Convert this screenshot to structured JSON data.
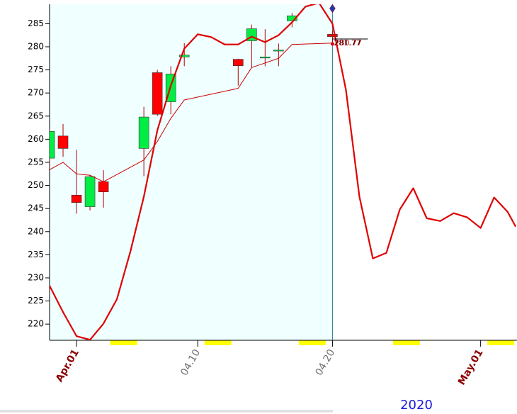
{
  "chart_data": {
    "type": "candlestick",
    "year_label": "2020",
    "xlim": [
      -1,
      33.7
    ],
    "ylim": [
      216.5,
      289.2
    ],
    "yticks": [
      220,
      225,
      230,
      235,
      240,
      245,
      250,
      255,
      260,
      265,
      270,
      275,
      280,
      285
    ],
    "xticks": [
      {
        "value": 1,
        "label": "Apr.01"
      },
      {
        "value": 10,
        "label": "04.10"
      },
      {
        "value": 20,
        "label": "04.20"
      },
      {
        "value": 31,
        "label": "May.01"
      }
    ],
    "xtick_colors": [
      "#8b0000",
      "#707070",
      "#707070",
      "#8b0000"
    ],
    "highlight_days": [
      4,
      5,
      11,
      12,
      18,
      19,
      25,
      26,
      32,
      33
    ],
    "highlight_color": "#ffff00",
    "shaded_until": 20,
    "shade_color": "#f0ffff",
    "candles": {
      "up_color": "#00ee44",
      "down_color": "#ff0000",
      "x": [
        -1,
        0,
        1,
        2,
        3,
        6,
        7,
        8,
        9,
        13,
        14,
        15,
        16,
        17,
        20
      ],
      "open": [
        255.9,
        260.7,
        247.9,
        245.4,
        250.8,
        258.0,
        274.4,
        268.1,
        277.8,
        277.3,
        281.3,
        277.7,
        279.2,
        285.6,
        282.7
      ],
      "high": [
        262.2,
        263.3,
        257.7,
        252.3,
        253.3,
        267.0,
        275.0,
        275.8,
        280.8,
        277.4,
        284.8,
        283.8,
        280.7,
        287.3,
        283.5
      ],
      "low": [
        253.8,
        256.2,
        243.9,
        244.6,
        245.2,
        252.0,
        265.0,
        265.4,
        275.8,
        271.6,
        275.4,
        275.8,
        275.8,
        284.2,
        280.8
      ],
      "close": [
        261.7,
        258.0,
        246.3,
        251.9,
        248.6,
        264.8,
        265.4,
        274.1,
        278.2,
        275.9,
        283.9,
        277.8,
        279.3,
        286.7,
        282.2
      ]
    },
    "lines": [
      {
        "color": "#e00000",
        "width": 2.2,
        "x": [
          -1,
          0,
          1,
          2,
          3,
          4,
          5,
          6,
          7,
          8,
          9,
          10,
          11,
          12,
          13,
          14,
          15,
          16,
          17,
          18,
          19,
          20,
          21,
          22,
          23,
          24,
          25,
          26,
          27,
          28,
          29,
          30,
          31,
          32,
          33,
          33.6
        ],
        "values": [
          228.3,
          222.6,
          217.4,
          216.6,
          220.1,
          225.4,
          235.7,
          247.6,
          261.9,
          271.6,
          279.6,
          282.7,
          282.1,
          280.5,
          280.5,
          282.2,
          281.0,
          282.5,
          285.3,
          288.7,
          289.5,
          285.0,
          270.7,
          247.6,
          234.2,
          235.4,
          244.8,
          249.4,
          242.9,
          242.3,
          244.0,
          243.1,
          240.8,
          247.4,
          244.3,
          241.1
        ]
      },
      {
        "color": "#cc0000",
        "width": 1,
        "x": [
          -1,
          0,
          1,
          2,
          3,
          6,
          7,
          8,
          9,
          13,
          14,
          15,
          16,
          17,
          20
        ],
        "values": [
          253.4,
          255.0,
          252.5,
          252.2,
          250.8,
          255.5,
          259.5,
          264.5,
          268.5,
          271.0,
          275.5,
          276.5,
          277.5,
          280.5,
          280.8
        ]
      }
    ],
    "annotations": [
      "281.77",
      "280.77"
    ]
  }
}
